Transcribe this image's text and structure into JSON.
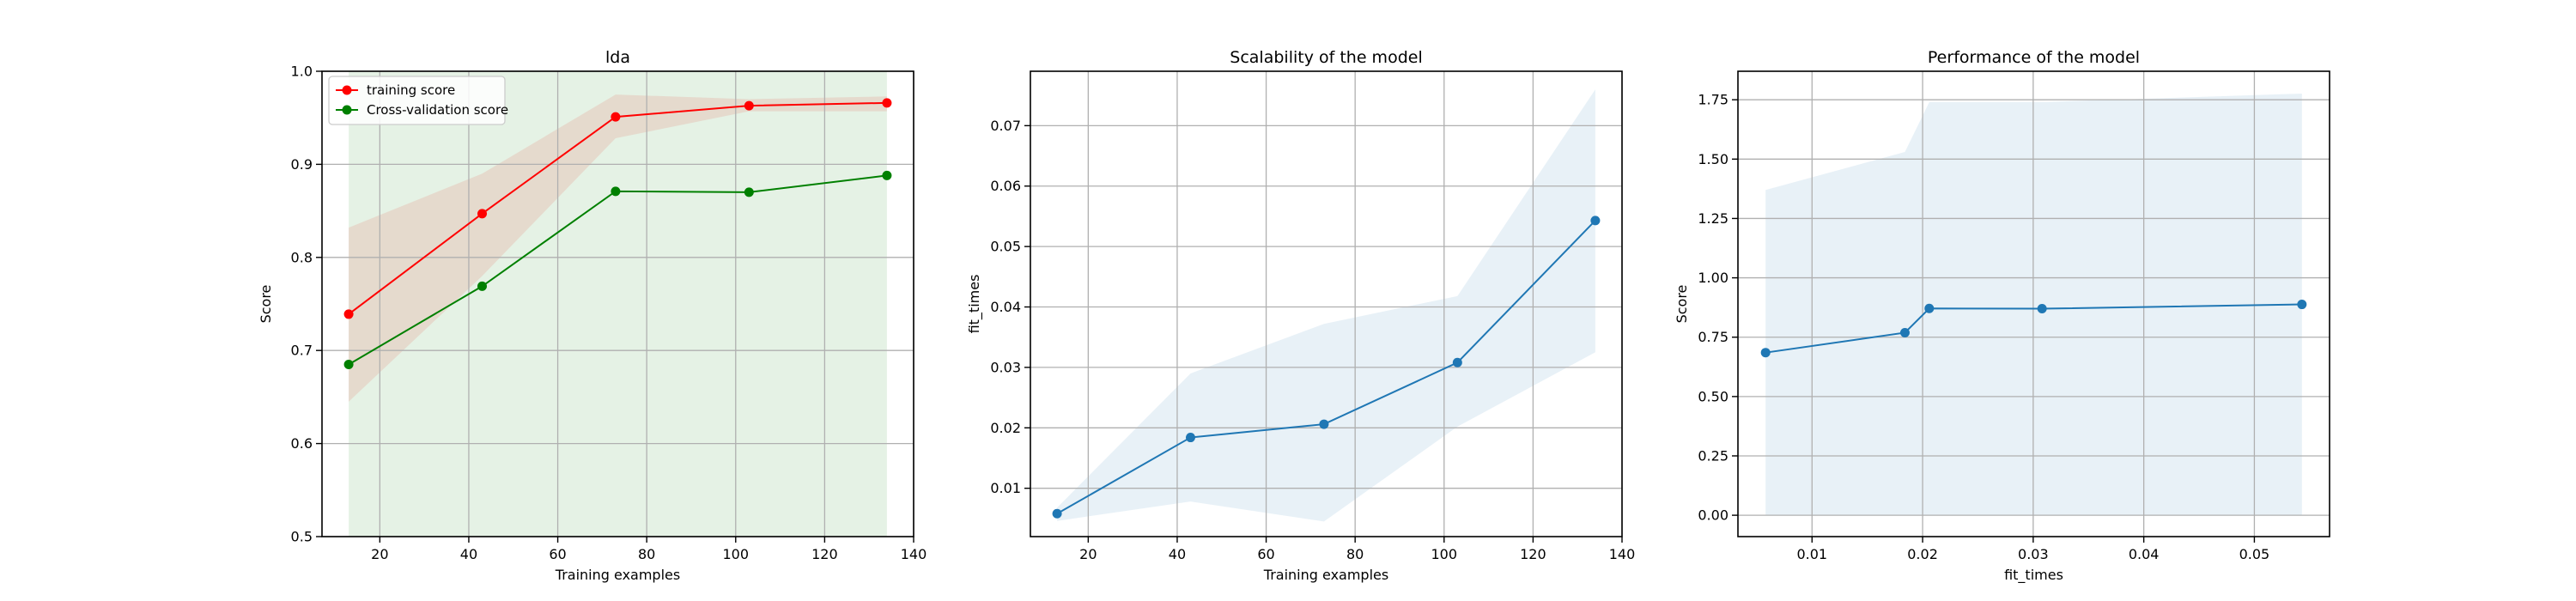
{
  "chart_data": [
    {
      "type": "line",
      "title": "lda",
      "xlabel": "Training examples",
      "ylabel": "Score",
      "xlim": [
        7,
        140
      ],
      "ylim": [
        0.5,
        1.0
      ],
      "xticks": [
        20,
        40,
        60,
        80,
        100,
        120,
        140
      ],
      "yticks": [
        0.5,
        0.6,
        0.7,
        0.8,
        0.9,
        1.0
      ],
      "ytick_decimals": 1,
      "grid": true,
      "legend_placement": "upper-left",
      "x": [
        13,
        43,
        73,
        103,
        134
      ],
      "series": [
        {
          "name": "training score",
          "color": "#ff0000",
          "values": [
            0.739,
            0.847,
            0.951,
            0.963,
            0.966
          ],
          "band_lower": [
            0.645,
            0.78,
            0.928,
            0.957,
            0.957
          ],
          "band_upper": [
            0.832,
            0.89,
            0.975,
            0.97,
            0.973
          ],
          "band_color": "#ff0000",
          "band_opacity": 0.1
        },
        {
          "name": "Cross-validation score",
          "color": "#008000",
          "values": [
            0.685,
            0.769,
            0.871,
            0.87,
            0.888
          ],
          "band_lower": [
            0.5,
            0.5,
            0.5,
            0.5,
            0.5
          ],
          "band_upper": [
            1.0,
            1.0,
            1.0,
            1.0,
            1.0
          ],
          "band_color": "#008000",
          "band_opacity": 0.1
        }
      ]
    },
    {
      "type": "line",
      "title": "Scalability of the model",
      "xlabel": "Training examples",
      "ylabel": "fit_times",
      "xlim": [
        7,
        140
      ],
      "ylim": [
        0.002,
        0.079
      ],
      "xticks": [
        20,
        40,
        60,
        80,
        100,
        120,
        140
      ],
      "yticks": [
        0.01,
        0.02,
        0.03,
        0.04,
        0.05,
        0.06,
        0.07
      ],
      "ytick_decimals": 2,
      "grid": true,
      "x": [
        13,
        43,
        73,
        103,
        134
      ],
      "series": [
        {
          "name": "",
          "color": "#1f77b4",
          "values": [
            0.0058,
            0.0184,
            0.0206,
            0.0308,
            0.0543
          ],
          "band_lower": [
            0.0046,
            0.0078,
            0.0045,
            0.0202,
            0.0325
          ],
          "band_upper": [
            0.0068,
            0.029,
            0.0372,
            0.0418,
            0.076
          ],
          "band_color": "#1f77b4",
          "band_opacity": 0.1
        }
      ]
    },
    {
      "type": "line",
      "title": "Performance of the model",
      "xlabel": "fit_times",
      "ylabel": "Score",
      "xlim": [
        0.0033,
        0.0568
      ],
      "ylim": [
        -0.09,
        1.87
      ],
      "xticks": [
        0.01,
        0.02,
        0.03,
        0.04,
        0.05
      ],
      "yticks": [
        0.0,
        0.25,
        0.5,
        0.75,
        1.0,
        1.25,
        1.5,
        1.75
      ],
      "ytick_decimals": 2,
      "grid": true,
      "x": [
        0.0058,
        0.0184,
        0.0206,
        0.0308,
        0.0543
      ],
      "series": [
        {
          "name": "",
          "color": "#1f77b4",
          "values": [
            0.685,
            0.769,
            0.871,
            0.87,
            0.888
          ],
          "band_lower": [
            0.0,
            0.0,
            0.0,
            0.0,
            0.0
          ],
          "band_upper": [
            1.37,
            1.53,
            1.74,
            1.74,
            1.776
          ],
          "band_color": "#1f77b4",
          "band_opacity": 0.1
        }
      ]
    }
  ]
}
